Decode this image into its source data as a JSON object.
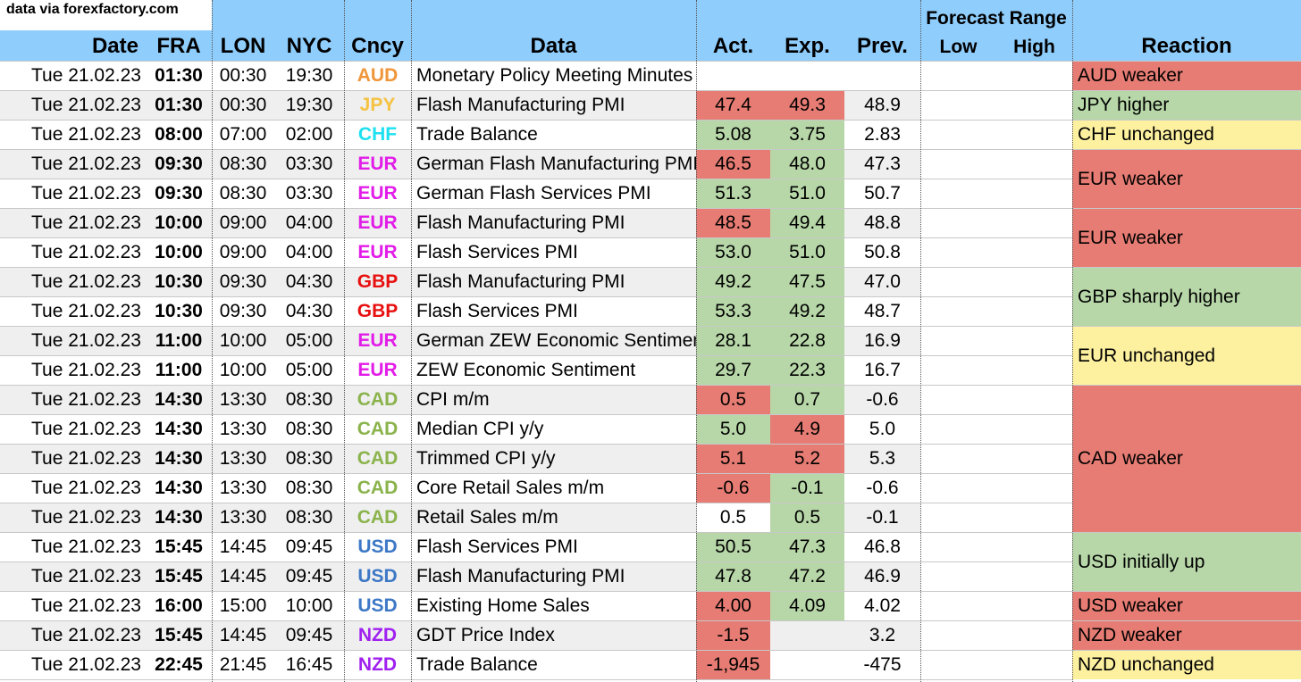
{
  "source_note": "data via forexfactory.com",
  "headers": {
    "date": "Date",
    "fra": "FRA",
    "lon": "LON",
    "nyc": "NYC",
    "cncy": "Cncy",
    "data": "Data",
    "act": "Act.",
    "exp": "Exp.",
    "prev": "Prev.",
    "forecast_range": "Forecast Range",
    "low": "Low",
    "high": "High",
    "reaction": "Reaction"
  },
  "colors": {
    "header_bg": "#8fcdfc",
    "red": "#e67c73",
    "green": "#b7d7a8",
    "yellow": "#fdf1a0",
    "stripe": "#efefef",
    "white": "#ffffff",
    "AUD": "#f0963a",
    "JPY": "#f5c242",
    "CHF": "#1de0f0",
    "EUR": "#e21ce8",
    "GBP": "#e80f0f",
    "CAD": "#8ab34c",
    "USD": "#3d78c6",
    "NZD": "#a020f0"
  },
  "rows": [
    {
      "date": "Tue 21.02.23",
      "fra": "01:30",
      "lon": "00:30",
      "nyc": "19:30",
      "cncy": "AUD",
      "data": "Monetary Policy Meeting Minutes",
      "act": "",
      "act_c": "none",
      "exp": "",
      "exp_c": "none",
      "prev": ""
    },
    {
      "date": "Tue 21.02.23",
      "fra": "01:30",
      "lon": "00:30",
      "nyc": "19:30",
      "cncy": "JPY",
      "data": "Flash Manufacturing PMI",
      "act": "47.4",
      "act_c": "red",
      "exp": "49.3",
      "exp_c": "red",
      "prev": "48.9"
    },
    {
      "date": "Tue 21.02.23",
      "fra": "08:00",
      "lon": "07:00",
      "nyc": "02:00",
      "cncy": "CHF",
      "data": "Trade Balance",
      "act": "5.08",
      "act_c": "green",
      "exp": "3.75",
      "exp_c": "green",
      "prev": "2.83"
    },
    {
      "date": "Tue 21.02.23",
      "fra": "09:30",
      "lon": "08:30",
      "nyc": "03:30",
      "cncy": "EUR",
      "data": "German Flash Manufacturing PMI",
      "act": "46.5",
      "act_c": "red",
      "exp": "48.0",
      "exp_c": "green",
      "prev": "47.3"
    },
    {
      "date": "Tue 21.02.23",
      "fra": "09:30",
      "lon": "08:30",
      "nyc": "03:30",
      "cncy": "EUR",
      "data": "German Flash Services PMI",
      "act": "51.3",
      "act_c": "green",
      "exp": "51.0",
      "exp_c": "green",
      "prev": "50.7"
    },
    {
      "date": "Tue 21.02.23",
      "fra": "10:00",
      "lon": "09:00",
      "nyc": "04:00",
      "cncy": "EUR",
      "data": "Flash Manufacturing PMI",
      "act": "48.5",
      "act_c": "red",
      "exp": "49.4",
      "exp_c": "green",
      "prev": "48.8"
    },
    {
      "date": "Tue 21.02.23",
      "fra": "10:00",
      "lon": "09:00",
      "nyc": "04:00",
      "cncy": "EUR",
      "data": "Flash Services PMI",
      "act": "53.0",
      "act_c": "green",
      "exp": "51.0",
      "exp_c": "green",
      "prev": "50.8"
    },
    {
      "date": "Tue 21.02.23",
      "fra": "10:30",
      "lon": "09:30",
      "nyc": "04:30",
      "cncy": "GBP",
      "data": "Flash Manufacturing PMI",
      "act": "49.2",
      "act_c": "green",
      "exp": "47.5",
      "exp_c": "green",
      "prev": "47.0"
    },
    {
      "date": "Tue 21.02.23",
      "fra": "10:30",
      "lon": "09:30",
      "nyc": "04:30",
      "cncy": "GBP",
      "data": "Flash Services PMI",
      "act": "53.3",
      "act_c": "green",
      "exp": "49.2",
      "exp_c": "green",
      "prev": "48.7"
    },
    {
      "date": "Tue 21.02.23",
      "fra": "11:00",
      "lon": "10:00",
      "nyc": "05:00",
      "cncy": "EUR",
      "data": "German ZEW Economic Sentiment",
      "act": "28.1",
      "act_c": "green",
      "exp": "22.8",
      "exp_c": "green",
      "prev": "16.9"
    },
    {
      "date": "Tue 21.02.23",
      "fra": "11:00",
      "lon": "10:00",
      "nyc": "05:00",
      "cncy": "EUR",
      "data": "ZEW Economic Sentiment",
      "act": "29.7",
      "act_c": "green",
      "exp": "22.3",
      "exp_c": "green",
      "prev": "16.7"
    },
    {
      "date": "Tue 21.02.23",
      "fra": "14:30",
      "lon": "13:30",
      "nyc": "08:30",
      "cncy": "CAD",
      "data": "CPI m/m",
      "act": "0.5",
      "act_c": "red",
      "exp": "0.7",
      "exp_c": "green",
      "prev": "-0.6"
    },
    {
      "date": "Tue 21.02.23",
      "fra": "14:30",
      "lon": "13:30",
      "nyc": "08:30",
      "cncy": "CAD",
      "data": "Median CPI y/y",
      "act": "5.0",
      "act_c": "green",
      "exp": "4.9",
      "exp_c": "red",
      "prev": "5.0"
    },
    {
      "date": "Tue 21.02.23",
      "fra": "14:30",
      "lon": "13:30",
      "nyc": "08:30",
      "cncy": "CAD",
      "data": "Trimmed CPI y/y",
      "act": "5.1",
      "act_c": "red",
      "exp": "5.2",
      "exp_c": "red",
      "prev": "5.3"
    },
    {
      "date": "Tue 21.02.23",
      "fra": "14:30",
      "lon": "13:30",
      "nyc": "08:30",
      "cncy": "CAD",
      "data": "Core Retail Sales m/m",
      "act": "-0.6",
      "act_c": "red",
      "exp": "-0.1",
      "exp_c": "green",
      "prev": "-0.6"
    },
    {
      "date": "Tue 21.02.23",
      "fra": "14:30",
      "lon": "13:30",
      "nyc": "08:30",
      "cncy": "CAD",
      "data": "Retail Sales m/m",
      "act": "0.5",
      "act_c": "white",
      "exp": "0.5",
      "exp_c": "green",
      "prev": "-0.1"
    },
    {
      "date": "Tue 21.02.23",
      "fra": "15:45",
      "lon": "14:45",
      "nyc": "09:45",
      "cncy": "USD",
      "data": "Flash Services PMI",
      "act": "50.5",
      "act_c": "green",
      "exp": "47.3",
      "exp_c": "green",
      "prev": "46.8"
    },
    {
      "date": "Tue 21.02.23",
      "fra": "15:45",
      "lon": "14:45",
      "nyc": "09:45",
      "cncy": "USD",
      "data": "Flash Manufacturing PMI",
      "act": "47.8",
      "act_c": "green",
      "exp": "47.2",
      "exp_c": "green",
      "prev": "46.9"
    },
    {
      "date": "Tue 21.02.23",
      "fra": "16:00",
      "lon": "15:00",
      "nyc": "10:00",
      "cncy": "USD",
      "data": "Existing Home Sales",
      "act": "4.00",
      "act_c": "red",
      "exp": "4.09",
      "exp_c": "green",
      "prev": "4.02"
    },
    {
      "date": "Tue 21.02.23",
      "fra": "15:45",
      "lon": "14:45",
      "nyc": "09:45",
      "cncy": "NZD",
      "data": "GDT Price Index",
      "act": "-1.5",
      "act_c": "red",
      "exp": "",
      "exp_c": "none",
      "prev": "3.2"
    },
    {
      "date": "Tue 21.02.23",
      "fra": "22:45",
      "lon": "21:45",
      "nyc": "16:45",
      "cncy": "NZD",
      "data": "Trade Balance",
      "act": "-1,945",
      "act_c": "red",
      "exp": "",
      "exp_c": "none",
      "prev": "-475"
    }
  ],
  "reactions": [
    {
      "text": "AUD weaker",
      "start": 0,
      "span": 1,
      "color": "red"
    },
    {
      "text": "JPY higher",
      "start": 1,
      "span": 1,
      "color": "green"
    },
    {
      "text": "CHF unchanged",
      "start": 2,
      "span": 1,
      "color": "yellow"
    },
    {
      "text": "EUR weaker",
      "start": 3,
      "span": 2,
      "color": "red"
    },
    {
      "text": "EUR weaker",
      "start": 5,
      "span": 2,
      "color": "red"
    },
    {
      "text": "GBP sharply higher",
      "start": 7,
      "span": 2,
      "color": "green"
    },
    {
      "text": "EUR unchanged",
      "start": 9,
      "span": 2,
      "color": "yellow"
    },
    {
      "text": "CAD weaker",
      "start": 11,
      "span": 5,
      "color": "red"
    },
    {
      "text": "USD initially up",
      "start": 16,
      "span": 2,
      "color": "green"
    },
    {
      "text": "USD weaker",
      "start": 18,
      "span": 1,
      "color": "red"
    },
    {
      "text": "NZD weaker",
      "start": 19,
      "span": 1,
      "color": "red"
    },
    {
      "text": "NZD unchanged",
      "start": 20,
      "span": 1,
      "color": "yellow"
    }
  ]
}
